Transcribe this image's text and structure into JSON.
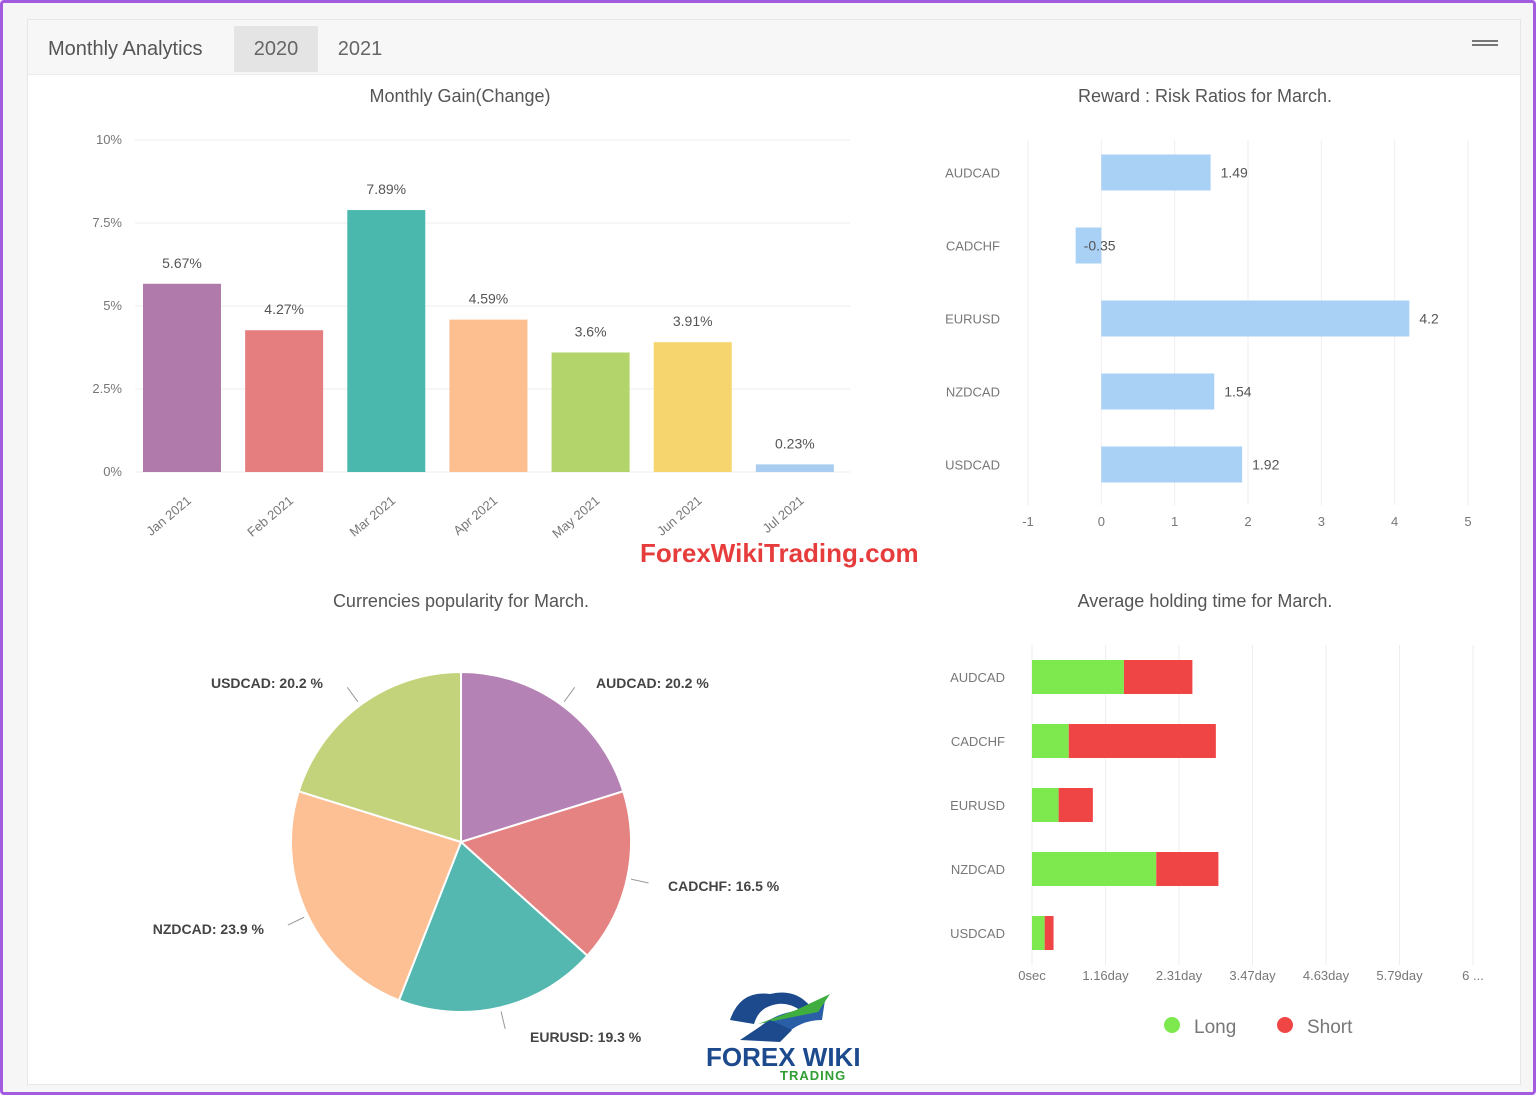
{
  "header": {
    "title": "Monthly Analytics",
    "tabs": [
      {
        "label": "2020",
        "active": true
      },
      {
        "label": "2021",
        "active": false
      }
    ]
  },
  "monthly_gain": {
    "title": "Monthly Gain(Change)",
    "y_ticks": [
      "10%",
      "7.5%",
      "5%",
      "2.5%",
      "0%"
    ]
  },
  "risk_ratio": {
    "title": "Reward : Risk Ratios for March.",
    "x_ticks": [
      "-1",
      "0",
      "1",
      "2",
      "3",
      "4",
      "5"
    ]
  },
  "popularity": {
    "title": "Currencies popularity for March."
  },
  "holding": {
    "title": "Average holding time for March.",
    "x_ticks": [
      "0sec",
      "1.16day",
      "2.31day",
      "3.47day",
      "4.63day",
      "5.79day",
      "6 ..."
    ],
    "legend": [
      "Long",
      "Short"
    ]
  },
  "watermark": "ForexWikiTrading.com",
  "logo": {
    "line1": "FOREX WIKI",
    "line2": "TRADING"
  },
  "chart_data": [
    {
      "type": "bar",
      "title": "Monthly Gain(Change)",
      "categories": [
        "Jan 2021",
        "Feb 2021",
        "Mar 2021",
        "Apr 2021",
        "May 2021",
        "Jun 2021",
        "Jul 2021"
      ],
      "values": [
        5.67,
        4.27,
        7.89,
        4.59,
        3.6,
        3.91,
        0.23
      ],
      "labels": [
        "5.67%",
        "4.27%",
        "7.89%",
        "4.59%",
        "3.6%",
        "3.91%",
        "0.23%"
      ],
      "colors": [
        "#b07aab",
        "#e57f7f",
        "#4bb8ad",
        "#fdbf90",
        "#b3d46a",
        "#f6d56e",
        "#a8cdf0"
      ],
      "ylim": [
        0,
        10
      ]
    },
    {
      "type": "bar",
      "orientation": "horizontal",
      "title": "Reward : Risk Ratios for March.",
      "categories": [
        "AUDCAD",
        "CADCHF",
        "EURUSD",
        "NZDCAD",
        "USDCAD"
      ],
      "values": [
        1.49,
        -0.35,
        4.2,
        1.54,
        1.92
      ],
      "labels": [
        "1.49",
        "-0.35",
        "4.2",
        "1.54",
        "1.92"
      ],
      "xlim": [
        -1,
        5
      ],
      "color": "#a9d0f5"
    },
    {
      "type": "pie",
      "title": "Currencies popularity for March.",
      "categories": [
        "AUDCAD",
        "CADCHF",
        "EURUSD",
        "NZDCAD",
        "USDCAD"
      ],
      "values": [
        20.2,
        16.5,
        19.3,
        23.9,
        20.2
      ],
      "labels": [
        "AUDCAD: 20.2 %",
        "CADCHF: 16.5 %",
        "EURUSD: 19.3 %",
        "NZDCAD: 23.9 %",
        "USDCAD: 20.2 %"
      ],
      "colors": [
        "#b482b4",
        "#e58383",
        "#54b8b0",
        "#fdbf94",
        "#c3d37c"
      ]
    },
    {
      "type": "bar",
      "orientation": "horizontal",
      "stacked": true,
      "title": "Average holding time for March.",
      "categories": [
        "AUDCAD",
        "CADCHF",
        "EURUSD",
        "NZDCAD",
        "USDCAD"
      ],
      "series": [
        {
          "name": "Long",
          "color": "#7ee84f",
          "values": [
            1.45,
            0.58,
            0.42,
            1.96,
            0.2
          ]
        },
        {
          "name": "Short",
          "color": "#f04545",
          "values": [
            1.08,
            2.32,
            0.54,
            0.98,
            0.14
          ]
        }
      ],
      "xlim": [
        0,
        3.47
      ]
    }
  ]
}
